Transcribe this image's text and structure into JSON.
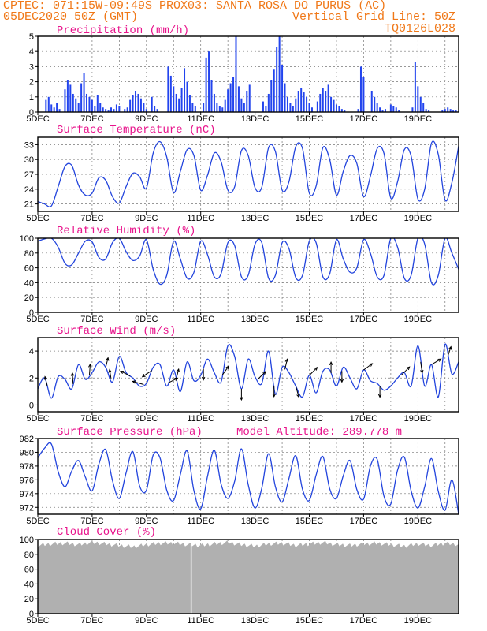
{
  "header": {
    "line1": "CPTEC:    071:15W-09:49S   PROX03: SANTA ROSA DO PURUS (AC)",
    "line2_left": "05DEC2020 50Z (GMT)",
    "line2_right": "Vertical Grid Line: 50Z",
    "line3_right": "TQ0126L028"
  },
  "x_axis": {
    "labels": [
      "5DEC",
      "7DEC",
      "9DEC",
      "11DEC",
      "13DEC",
      "15DEC",
      "17DEC",
      "19DEC"
    ],
    "days": 15.5
  },
  "colors": {
    "line": "#2244dd",
    "bar": "#2244ee",
    "cloud": "#b0b0b0",
    "arrow": "#000000"
  },
  "chart_data": [
    {
      "id": "precip",
      "type": "bar",
      "title": "Precipitation (mm/h)",
      "ylim": [
        0,
        5
      ],
      "yticks": [
        0,
        1,
        2,
        3,
        4,
        5
      ],
      "x_days": [
        0.3,
        0.4,
        0.5,
        0.6,
        0.7,
        0.8,
        1.0,
        1.1,
        1.2,
        1.3,
        1.4,
        1.5,
        1.6,
        1.7,
        1.8,
        1.9,
        2.0,
        2.1,
        2.2,
        2.3,
        2.4,
        2.5,
        2.6,
        2.7,
        2.8,
        2.9,
        3.0,
        3.2,
        3.3,
        3.4,
        3.5,
        3.6,
        3.7,
        3.8,
        3.9,
        4.0,
        4.2,
        4.3,
        4.4,
        4.8,
        4.9,
        5.0,
        5.1,
        5.2,
        5.3,
        5.4,
        5.5,
        5.6,
        5.7,
        5.8,
        6.1,
        6.2,
        6.3,
        6.4,
        6.5,
        6.6,
        6.7,
        6.8,
        6.9,
        7.0,
        7.1,
        7.2,
        7.3,
        7.4,
        7.5,
        7.6,
        7.7,
        7.8,
        8.3,
        8.4,
        8.5,
        8.6,
        8.7,
        8.8,
        8.9,
        9.0,
        9.1,
        9.2,
        9.3,
        9.4,
        9.5,
        9.6,
        9.7,
        9.8,
        9.9,
        10.0,
        10.1,
        10.3,
        10.4,
        10.5,
        10.6,
        10.7,
        10.8,
        10.9,
        11.0,
        11.1,
        11.2,
        11.3,
        11.4,
        11.5,
        11.6,
        11.7,
        11.8,
        11.9,
        12.0,
        12.3,
        12.4,
        12.5,
        12.6,
        12.7,
        12.8,
        13.0,
        13.1,
        13.2,
        13.3,
        13.8,
        13.9,
        14.0,
        14.1,
        14.2,
        14.3,
        14.4,
        14.5,
        14.9,
        15.0,
        15.1,
        15.2,
        15.3,
        15.4
      ],
      "values": [
        0.8,
        1.0,
        0.5,
        0.3,
        0.6,
        0.2,
        1.5,
        2.1,
        1.8,
        1.2,
        0.9,
        0.6,
        1.9,
        2.6,
        1.2,
        1.0,
        0.8,
        0.4,
        1.1,
        0.6,
        0.3,
        0.2,
        0.1,
        0.3,
        0.2,
        0.5,
        0.4,
        0.2,
        0.3,
        0.8,
        1.1,
        1.4,
        1.2,
        0.9,
        0.6,
        0.2,
        1.0,
        0.4,
        0.2,
        3.0,
        2.4,
        1.7,
        1.2,
        0.9,
        1.6,
        2.9,
        2.0,
        1.1,
        0.6,
        0.4,
        0.6,
        3.6,
        4.0,
        2.1,
        1.2,
        0.6,
        0.4,
        0.3,
        0.8,
        1.5,
        1.9,
        2.3,
        5.0,
        1.7,
        0.9,
        0.6,
        1.4,
        1.8,
        0.7,
        0.4,
        1.2,
        2.1,
        2.8,
        4.3,
        5.0,
        3.1,
        1.9,
        1.0,
        0.6,
        0.4,
        0.9,
        1.4,
        1.6,
        1.3,
        1.0,
        0.6,
        0.3,
        0.7,
        1.2,
        1.6,
        1.4,
        1.8,
        1.0,
        0.8,
        0.5,
        0.4,
        0.2,
        0.1,
        0.0,
        0.0,
        0.0,
        0.0,
        0.2,
        3.0,
        2.3,
        1.4,
        1.0,
        0.6,
        0.3,
        0.1,
        0.2,
        0.5,
        0.4,
        0.3,
        0.1,
        0.3,
        3.3,
        1.7,
        1.0,
        0.6,
        0.2,
        0.1,
        0.0,
        0.1,
        0.2,
        0.3,
        0.2,
        0.1,
        0.1
      ]
    },
    {
      "id": "temperature",
      "type": "line",
      "title": "Surface Temperature (nC)",
      "ylim": [
        19.5,
        34.5
      ],
      "yticks": [
        21,
        24,
        27,
        30,
        33
      ],
      "x_days": [
        0,
        0.25,
        0.5,
        0.75,
        1.0,
        1.25,
        1.5,
        1.75,
        2.0,
        2.25,
        2.5,
        2.75,
        3.0,
        3.25,
        3.5,
        3.75,
        4.0,
        4.25,
        4.5,
        4.75,
        5.0,
        5.25,
        5.5,
        5.75,
        6.0,
        6.25,
        6.5,
        6.75,
        7.0,
        7.25,
        7.5,
        7.75,
        8.0,
        8.25,
        8.5,
        8.75,
        9.0,
        9.25,
        9.5,
        9.75,
        10.0,
        10.25,
        10.5,
        10.75,
        11.0,
        11.25,
        11.5,
        11.75,
        12.0,
        12.25,
        12.5,
        12.75,
        13.0,
        13.25,
        13.5,
        13.75,
        14.0,
        14.25,
        14.5,
        14.75,
        15.0,
        15.25,
        15.5
      ],
      "values": [
        21.5,
        21.0,
        20.6,
        24.5,
        28.6,
        28.8,
        24.8,
        22.8,
        23.2,
        26.3,
        25.8,
        22.5,
        21.2,
        24.5,
        27.2,
        26.5,
        24.2,
        31.3,
        33.6,
        30.5,
        23.3,
        27.6,
        32.0,
        30.8,
        23.8,
        26.8,
        31.3,
        29.6,
        23.8,
        24.5,
        31.8,
        30.8,
        24.3,
        24.4,
        32.4,
        31.6,
        23.8,
        25.5,
        32.6,
        32.2,
        23.2,
        24.6,
        32.4,
        30.0,
        22.8,
        27.6,
        30.8,
        29.2,
        22.5,
        26.6,
        32.2,
        31.2,
        22.2,
        25.5,
        32.0,
        30.7,
        22.0,
        24.0,
        33.3,
        31.0,
        21.8,
        25.3,
        32.7
      ]
    },
    {
      "id": "humidity",
      "type": "line",
      "title": "Relative Humidity (%)",
      "ylim": [
        0,
        100
      ],
      "yticks": [
        0,
        20,
        40,
        60,
        80,
        100
      ],
      "x_days": [
        0,
        0.25,
        0.5,
        0.75,
        1.0,
        1.25,
        1.5,
        1.75,
        2.0,
        2.25,
        2.5,
        2.75,
        3.0,
        3.25,
        3.5,
        3.75,
        4.0,
        4.25,
        4.5,
        4.75,
        5.0,
        5.25,
        5.5,
        5.75,
        6.0,
        6.25,
        6.5,
        6.75,
        7.0,
        7.25,
        7.5,
        7.75,
        8.0,
        8.25,
        8.5,
        8.75,
        9.0,
        9.25,
        9.5,
        9.75,
        10.0,
        10.25,
        10.5,
        10.75,
        11.0,
        11.25,
        11.5,
        11.75,
        12.0,
        12.25,
        12.5,
        12.75,
        13.0,
        13.25,
        13.5,
        13.75,
        14.0,
        14.25,
        14.5,
        14.75,
        15.0,
        15.25,
        15.5
      ],
      "values": [
        96,
        99,
        100,
        88,
        66,
        64,
        80,
        96,
        95,
        74,
        72,
        94,
        100,
        82,
        70,
        76,
        98,
        58,
        38,
        50,
        96,
        72,
        46,
        54,
        96,
        78,
        48,
        52,
        94,
        90,
        48,
        50,
        92,
        94,
        46,
        50,
        94,
        86,
        47,
        50,
        96,
        94,
        48,
        52,
        98,
        72,
        54,
        60,
        98,
        80,
        48,
        50,
        100,
        88,
        46,
        50,
        100,
        92,
        40,
        50,
        100,
        80,
        58
      ]
    },
    {
      "id": "wind",
      "type": "line",
      "title": "Surface Wind (m/s)",
      "ylim": [
        -0.5,
        5
      ],
      "yticks": [
        0,
        2,
        4
      ],
      "x_days": [
        0,
        0.25,
        0.5,
        0.75,
        1.0,
        1.25,
        1.5,
        1.75,
        2.0,
        2.25,
        2.5,
        2.75,
        3.0,
        3.25,
        3.5,
        3.75,
        4.0,
        4.25,
        4.5,
        4.75,
        5.0,
        5.25,
        5.5,
        5.75,
        6.0,
        6.25,
        6.5,
        6.75,
        7.0,
        7.25,
        7.5,
        7.75,
        8.0,
        8.25,
        8.5,
        8.75,
        9.0,
        9.25,
        9.5,
        9.75,
        10.0,
        10.25,
        10.5,
        10.75,
        11.0,
        11.25,
        11.5,
        11.75,
        12.0,
        12.25,
        12.5,
        12.75,
        13.0,
        13.25,
        13.5,
        13.75,
        14.0,
        14.25,
        14.5,
        14.75,
        15.0,
        15.25,
        15.5
      ],
      "values": [
        1.2,
        2.0,
        0.5,
        2.1,
        1.9,
        1.2,
        3.0,
        1.9,
        2.4,
        3.2,
        2.8,
        1.7,
        3.6,
        2.4,
        2.0,
        1.4,
        1.6,
        2.8,
        3.0,
        1.4,
        2.6,
        1.0,
        3.2,
        1.8,
        2.2,
        3.4,
        2.4,
        1.7,
        4.4,
        3.6,
        1.2,
        3.4,
        2.1,
        1.6,
        4.0,
        0.8,
        2.8,
        2.4,
        1.4,
        0.6,
        2.2,
        0.9,
        2.5,
        2.6,
        1.4,
        2.8,
        2.0,
        1.2,
        2.6,
        1.8,
        1.6,
        1.1,
        1.4,
        2.0,
        2.4,
        1.4,
        4.4,
        1.4,
        3.0,
        0.6,
        4.5,
        2.3,
        3.2
      ],
      "arrows": [
        {
          "x": 0.35,
          "dx": -3,
          "dy": -12
        },
        {
          "x": 1.3,
          "dx": -1,
          "dy": -14
        },
        {
          "x": 1.9,
          "dx": 1,
          "dy": -14
        },
        {
          "x": 2.5,
          "dx": 3,
          "dy": -12
        },
        {
          "x": 2.7,
          "dx": -2,
          "dy": -12
        },
        {
          "x": 3.4,
          "dx": -12,
          "dy": -6
        },
        {
          "x": 3.9,
          "dx": -14,
          "dy": -4
        },
        {
          "x": 4.2,
          "dx": -12,
          "dy": 8
        },
        {
          "x": 4.8,
          "dx": 12,
          "dy": -6
        },
        {
          "x": 5.1,
          "dx": 3,
          "dy": -12
        },
        {
          "x": 6.1,
          "dx": 0,
          "dy": 14
        },
        {
          "x": 6.8,
          "dx": 8,
          "dy": -11
        },
        {
          "x": 7.5,
          "dx": 0,
          "dy": 14
        },
        {
          "x": 8.1,
          "dx": 10,
          "dy": -10
        },
        {
          "x": 8.7,
          "dx": 0,
          "dy": 14
        },
        {
          "x": 9.1,
          "dx": 3,
          "dy": -13
        },
        {
          "x": 9.5,
          "dx": 4,
          "dy": 14
        },
        {
          "x": 10.0,
          "dx": 10,
          "dy": -10
        },
        {
          "x": 10.8,
          "dx": 0,
          "dy": -14
        },
        {
          "x": 11.2,
          "dx": 0,
          "dy": 14
        },
        {
          "x": 12.0,
          "dx": 11,
          "dy": -8
        },
        {
          "x": 12.6,
          "dx": 0,
          "dy": 14
        },
        {
          "x": 13.4,
          "dx": 10,
          "dy": -10
        },
        {
          "x": 14.1,
          "dx": 2,
          "dy": 14
        },
        {
          "x": 14.5,
          "dx": 12,
          "dy": -7
        },
        {
          "x": 15.1,
          "dx": 4,
          "dy": -12
        }
      ]
    },
    {
      "id": "pressure",
      "type": "line",
      "title": "Surface Pressure (hPa)",
      "subtitle": "Model Altitude: 289.778  m",
      "ylim": [
        971,
        982
      ],
      "yticks": [
        972,
        974,
        976,
        978,
        980,
        982
      ],
      "x_days": [
        0,
        0.25,
        0.5,
        0.75,
        1.0,
        1.25,
        1.5,
        1.75,
        2.0,
        2.25,
        2.5,
        2.75,
        3.0,
        3.25,
        3.5,
        3.75,
        4.0,
        4.25,
        4.5,
        4.75,
        5.0,
        5.25,
        5.5,
        5.75,
        6.0,
        6.25,
        6.5,
        6.75,
        7.0,
        7.25,
        7.5,
        7.75,
        8.0,
        8.25,
        8.5,
        8.75,
        9.0,
        9.25,
        9.5,
        9.75,
        10.0,
        10.25,
        10.5,
        10.75,
        11.0,
        11.25,
        11.5,
        11.75,
        12.0,
        12.25,
        12.5,
        12.75,
        13.0,
        13.25,
        13.5,
        13.75,
        14.0,
        14.25,
        14.5,
        14.75,
        15.0,
        15.25,
        15.5
      ],
      "values": [
        979.2,
        980.6,
        981.2,
        977.2,
        975.0,
        977.3,
        978.8,
        976.4,
        974.4,
        978.3,
        980.4,
        975.9,
        973.3,
        977.0,
        980.1,
        975.1,
        974.5,
        979.6,
        979.2,
        974.5,
        973.0,
        976.8,
        980.2,
        974.4,
        971.8,
        976.5,
        980.3,
        975.4,
        973.3,
        975.8,
        980.5,
        975.3,
        971.9,
        974.8,
        979.8,
        975.0,
        972.8,
        976.2,
        979.5,
        974.6,
        973.0,
        976.7,
        979.4,
        974.7,
        973.3,
        976.6,
        978.8,
        974.6,
        973.2,
        978.0,
        979.0,
        973.6,
        972.5,
        977.4,
        979.3,
        974.4,
        971.9,
        975.0,
        979.1,
        974.3,
        971.6,
        976.0,
        971.0
      ]
    },
    {
      "id": "cloud",
      "type": "area",
      "title": "Cloud Cover (%)",
      "ylim": [
        0,
        100
      ],
      "yticks": [
        0,
        20,
        40,
        60,
        80,
        100
      ],
      "x_days": [
        0,
        0.5,
        1.0,
        1.5,
        2.0,
        2.5,
        3.0,
        3.5,
        4.0,
        4.5,
        5.0,
        5.5,
        6.0,
        6.5,
        7.0,
        7.5,
        8.0,
        8.5,
        9.0,
        9.5,
        10.0,
        10.5,
        11.0,
        11.5,
        12.0,
        12.5,
        13.0,
        13.5,
        14.0,
        14.5,
        15.0,
        15.5
      ],
      "values": [
        92,
        94,
        95,
        93,
        96,
        94,
        92,
        90,
        93,
        95,
        95,
        93,
        92,
        94,
        96,
        93,
        91,
        94,
        95,
        92,
        94,
        96,
        93,
        92,
        94,
        95,
        93,
        91,
        94,
        92,
        95,
        93
      ],
      "gap_day": 5.65
    }
  ]
}
